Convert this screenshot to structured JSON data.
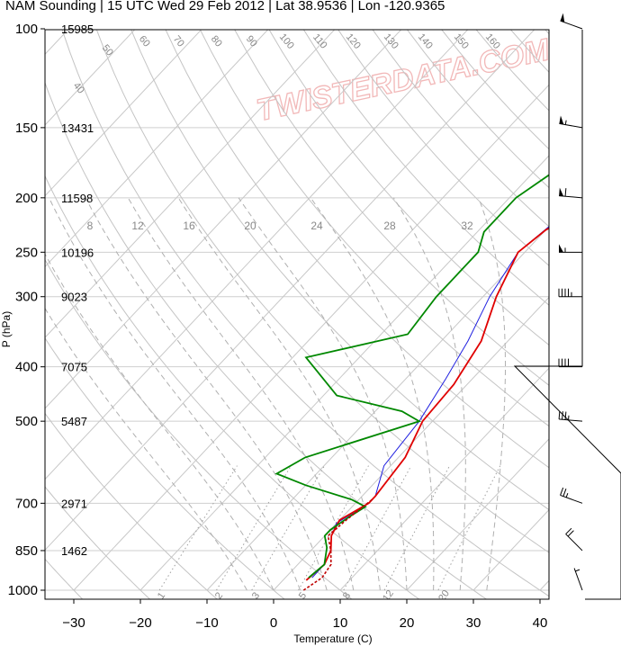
{
  "title": "NAM Sounding | 15 UTC Wed 29 Feb 2012 | Lat 38.9536 | Lon -120.9365",
  "watermark": "TWISTERDATA.COM",
  "chart_data": {
    "type": "line",
    "xlabel": "Temperature (C)",
    "ylabel": "P (hPa)",
    "xlim": [
      -35,
      48
    ],
    "ylim": [
      1000,
      100
    ],
    "y_scale": "log",
    "x_ticks": [
      -30,
      -20,
      -10,
      0,
      10,
      20,
      30,
      40
    ],
    "x_tick_labels": [
      "−30",
      "−20",
      "−10",
      "0",
      "10",
      "20",
      "30",
      "40"
    ],
    "p_ticks": [
      100,
      150,
      200,
      250,
      300,
      400,
      500,
      700,
      850,
      1000
    ],
    "heights": [
      {
        "p": 100,
        "label": "15985"
      },
      {
        "p": 150,
        "label": "13431"
      },
      {
        "p": 200,
        "label": "11598"
      },
      {
        "p": 250,
        "label": "10196"
      },
      {
        "p": 300,
        "label": "9023"
      },
      {
        "p": 400,
        "label": "7075"
      },
      {
        "p": 500,
        "label": "5487"
      },
      {
        "p": 700,
        "label": "2971"
      },
      {
        "p": 850,
        "label": "1462"
      }
    ],
    "dry_adiabat_labels": [
      "40",
      "50",
      "60",
      "70",
      "80",
      "90",
      "100",
      "110",
      "120",
      "130",
      "140",
      "150",
      "160"
    ],
    "mixing_ratio_labels": [
      "1",
      "2",
      "3",
      "5",
      "8",
      "12",
      "20"
    ],
    "top_labels": [
      "8",
      "12",
      "16",
      "20",
      "24",
      "28",
      "32"
    ],
    "series": [
      {
        "color": "#1f1fe0",
        "points": [
          [
            14,
            100
          ],
          [
            6,
            150
          ],
          [
            -2,
            180
          ],
          [
            -10,
            225
          ],
          [
            -11,
            250
          ],
          [
            -9,
            300
          ],
          [
            -6,
            360
          ],
          [
            -4,
            420
          ],
          [
            -2,
            500
          ],
          [
            -1,
            600
          ],
          [
            2,
            680
          ],
          [
            2,
            700
          ],
          [
            0,
            760
          ],
          [
            1,
            800
          ],
          [
            3,
            850
          ],
          [
            4,
            900
          ],
          [
            4,
            950
          ]
        ]
      },
      {
        "color": "#e00000",
        "points": [
          [
            14.5,
            100
          ],
          [
            7,
            150
          ],
          [
            -1,
            180
          ],
          [
            -10,
            228
          ],
          [
            -11,
            250
          ],
          [
            -8,
            300
          ],
          [
            -4,
            360
          ],
          [
            -2,
            430
          ],
          [
            -1.5,
            500
          ],
          [
            1,
            580
          ],
          [
            2,
            680
          ],
          [
            2,
            700
          ],
          [
            0,
            750
          ],
          [
            1,
            800
          ],
          [
            3,
            850
          ],
          [
            4,
            900
          ],
          [
            3.5,
            960
          ]
        ]
      },
      {
        "color": "#008800",
        "points": [
          [
            -15,
            100
          ],
          [
            -20,
            125
          ],
          [
            -20,
            150
          ],
          [
            -16,
            170
          ],
          [
            -19,
            200
          ],
          [
            -19,
            230
          ],
          [
            -17,
            250
          ],
          [
            -17,
            300
          ],
          [
            -16,
            350
          ],
          [
            -28,
            385
          ],
          [
            -18,
            450
          ],
          [
            -6,
            480
          ],
          [
            -2,
            500
          ],
          [
            -14,
            580
          ],
          [
            -16,
            620
          ],
          [
            -10,
            650
          ],
          [
            -1,
            690
          ],
          [
            2,
            710
          ],
          [
            1,
            740
          ],
          [
            0,
            780
          ],
          [
            0,
            800
          ],
          [
            2,
            840
          ],
          [
            4,
            900
          ],
          [
            3.5,
            950
          ]
        ]
      },
      {
        "color": "#c00000",
        "dash": true,
        "points": [
          [
            2,
            690
          ],
          [
            1,
            750
          ],
          [
            0.5,
            800
          ],
          [
            3,
            850
          ],
          [
            5,
            900
          ],
          [
            5.5,
            950
          ],
          [
            4.5,
            1000
          ]
        ]
      }
    ],
    "wind_barbs": [
      {
        "p": 100,
        "dir": 250,
        "speed": 50
      },
      {
        "p": 150,
        "dir": 260,
        "speed": 55
      },
      {
        "p": 200,
        "dir": 265,
        "speed": 60
      },
      {
        "p": 250,
        "dir": 270,
        "speed": 55
      },
      {
        "p": 300,
        "dir": 270,
        "speed": 45
      },
      {
        "p": 400,
        "dir": 270,
        "speed": 40
      },
      {
        "p": 500,
        "dir": 265,
        "speed": 35
      },
      {
        "p": 700,
        "dir": 250,
        "speed": 25
      },
      {
        "p": 850,
        "dir": 225,
        "speed": 20
      },
      {
        "p": 1000,
        "dir": 200,
        "speed": 5
      }
    ]
  }
}
